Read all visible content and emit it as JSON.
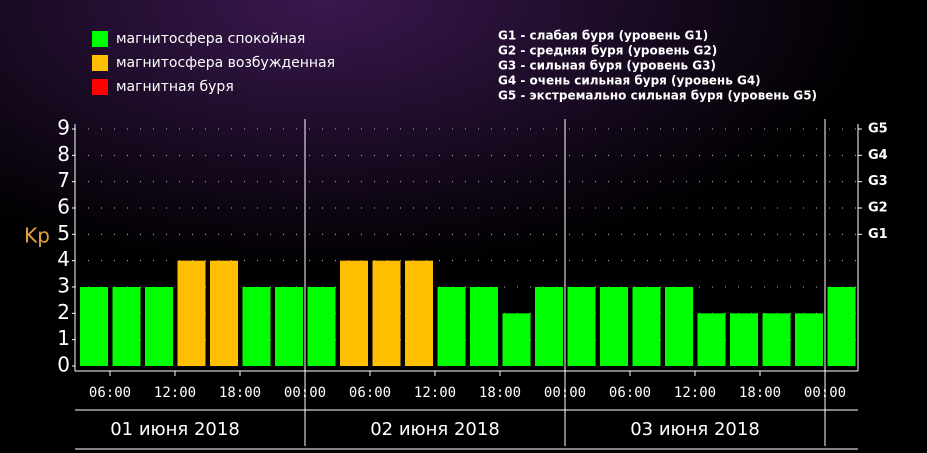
{
  "chart_data": {
    "type": "bar",
    "y_label": "Kp",
    "legend": [
      {
        "label": "магнитосфера спокойная",
        "color": "#00ff00"
      },
      {
        "label": "магнитосфера возбужденная",
        "color": "#ffbf00"
      },
      {
        "label": "магнитная буря",
        "color": "#ff0000"
      }
    ],
    "scale_notes": [
      "G1 - слабая буря (уровень G1)",
      "G2 - средняя буря (уровень G2)",
      "G3 - сильная буря (уровень G3)",
      "G4 - очень сильная буря (уровень G4)",
      "G5 - экстремально сильная буря (уровень G5)"
    ],
    "categories": [
      null,
      null,
      null,
      null,
      null,
      null,
      null,
      null,
      null,
      null,
      null,
      null,
      null,
      null,
      null,
      null,
      null,
      null,
      null,
      null,
      null,
      null,
      null,
      null
    ],
    "values": [
      3,
      3,
      3,
      4,
      4,
      3,
      3,
      3,
      4,
      4,
      4,
      3,
      3,
      2,
      3,
      3,
      3,
      3,
      3,
      2,
      2,
      2,
      2,
      3
    ],
    "colors": [
      "#00ff00",
      "#00ff00",
      "#00ff00",
      "#ffbf00",
      "#ffbf00",
      "#00ff00",
      "#00ff00",
      "#00ff00",
      "#ffbf00",
      "#ffbf00",
      "#ffbf00",
      "#00ff00",
      "#00ff00",
      "#00ff00",
      "#00ff00",
      "#00ff00",
      "#00ff00",
      "#00ff00",
      "#00ff00",
      "#00ff00",
      "#00ff00",
      "#00ff00",
      "#00ff00",
      "#00ff00"
    ],
    "x_tick_labels": [
      "06:00",
      "12:00",
      "18:00",
      "00:00",
      "06:00",
      "12:00",
      "18:00",
      "00:00",
      "06:00",
      "12:00",
      "18:00",
      "00:00"
    ],
    "day_labels": [
      "01 июня 2018",
      "02 июня 2018",
      "03 июня 2018"
    ],
    "ylim": [
      0,
      9
    ],
    "yticks": [
      0,
      1,
      2,
      3,
      4,
      5,
      6,
      7,
      8,
      9
    ],
    "y2lim": [
      0,
      9
    ],
    "y2ticks": [
      {
        "value": 5,
        "label": "G1"
      },
      {
        "value": 6,
        "label": "G2"
      },
      {
        "value": 7,
        "label": "G3"
      },
      {
        "value": 8,
        "label": "G4"
      },
      {
        "value": 9,
        "label": "G5"
      }
    ],
    "grid": true
  }
}
